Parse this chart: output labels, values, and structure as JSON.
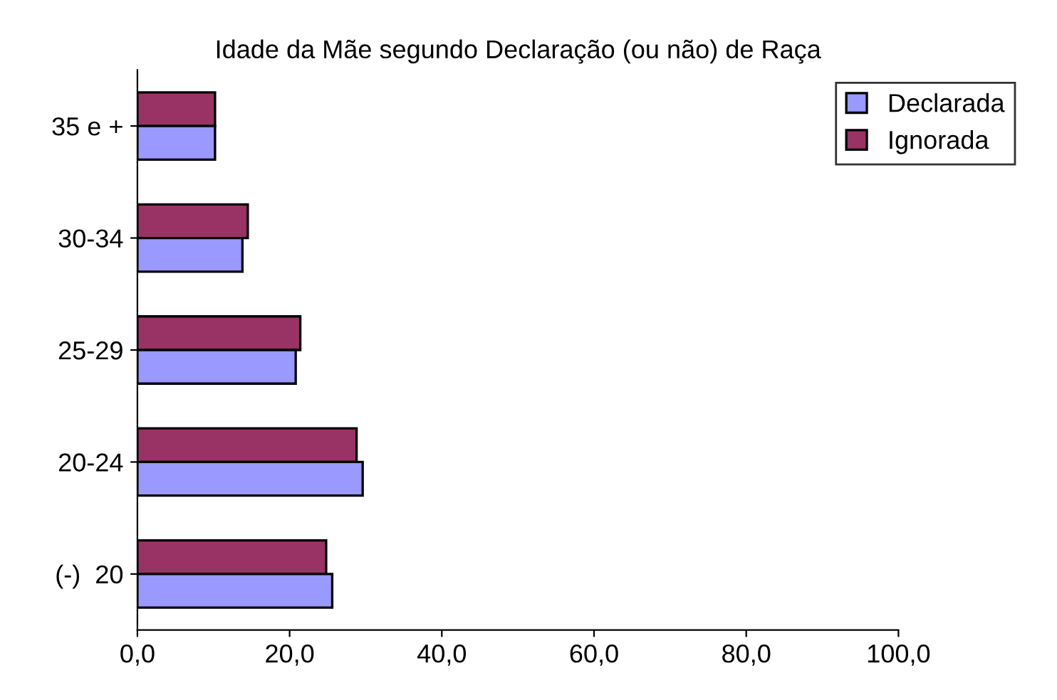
{
  "chart_data": {
    "type": "bar",
    "orientation": "horizontal",
    "title": "Idade da Mãe segundo Declaração (ou não) de Raça",
    "categories": [
      "35 e +",
      "30-34",
      "25-29",
      "20-24",
      "(-)  20"
    ],
    "series": [
      {
        "name": "Ignorada",
        "color": "#993366",
        "values": [
          10.2,
          14.5,
          21.4,
          28.8,
          24.8
        ]
      },
      {
        "name": "Declarada",
        "color": "#9999ff",
        "values": [
          10.2,
          13.8,
          20.8,
          29.6,
          25.6
        ]
      }
    ],
    "xlim": [
      0,
      100
    ],
    "xticks": [
      {
        "value": 0,
        "label": "0,0"
      },
      {
        "value": 20,
        "label": "20,0"
      },
      {
        "value": 40,
        "label": "40,0"
      },
      {
        "value": 60,
        "label": "60,0"
      },
      {
        "value": 80,
        "label": "80,0"
      },
      {
        "value": 100,
        "label": "100,0"
      }
    ],
    "legend": "top right",
    "grid": false
  }
}
